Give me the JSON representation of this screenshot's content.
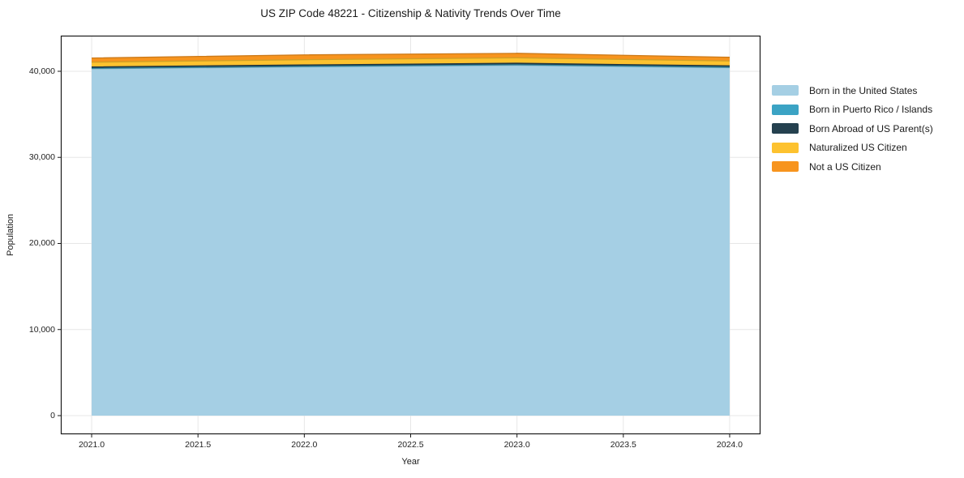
{
  "figure": {
    "background": "#ffffff",
    "border_color": "#1a1a1a",
    "tick_color": "#1a1a1a"
  },
  "chart_data": {
    "type": "area",
    "stacked": true,
    "title": "US ZIP Code 48221 - Citizenship & Nativity Trends Over Time",
    "xlabel": "Year",
    "ylabel": "Population",
    "x": [
      2021,
      2022,
      2023,
      2024
    ],
    "series": [
      {
        "name": "Born in the United States",
        "color": "#a5cfe4",
        "values": [
          40300,
          40520,
          40700,
          40420
        ]
      },
      {
        "name": "Born in Puerto Rico / Islands",
        "color": "#3ba3c4",
        "values": [
          40,
          45,
          50,
          45
        ]
      },
      {
        "name": "Born Abroad of US Parent(s)",
        "color": "#25414f",
        "values": [
          160,
          170,
          185,
          165
        ]
      },
      {
        "name": "Naturalized US Citizen",
        "color": "#fdc22f",
        "values": [
          560,
          610,
          630,
          570
        ]
      },
      {
        "name": "Not a US Citizen",
        "color": "#f7941e",
        "values": [
          480,
          560,
          520,
          430
        ]
      }
    ],
    "totals": [
      41540,
      41905,
      42085,
      41630
    ],
    "x_ticks": [
      2021.0,
      2021.5,
      2022.0,
      2022.5,
      2023.0,
      2023.5,
      2024.0
    ],
    "x_tick_labels": [
      "2021.0",
      "2021.5",
      "2022.0",
      "2022.5",
      "2023.0",
      "2023.5",
      "2024.0"
    ],
    "y_ticks": [
      0,
      10000,
      20000,
      30000,
      40000
    ],
    "y_tick_labels": [
      "0",
      "10,000",
      "20,000",
      "30,000",
      "40,000"
    ],
    "xlim": [
      2020.855,
      2024.145
    ],
    "ylim": [
      -2165,
      44140
    ],
    "grid": true,
    "grid_color": "#e7e7e7",
    "legend_position": "right-outside"
  }
}
